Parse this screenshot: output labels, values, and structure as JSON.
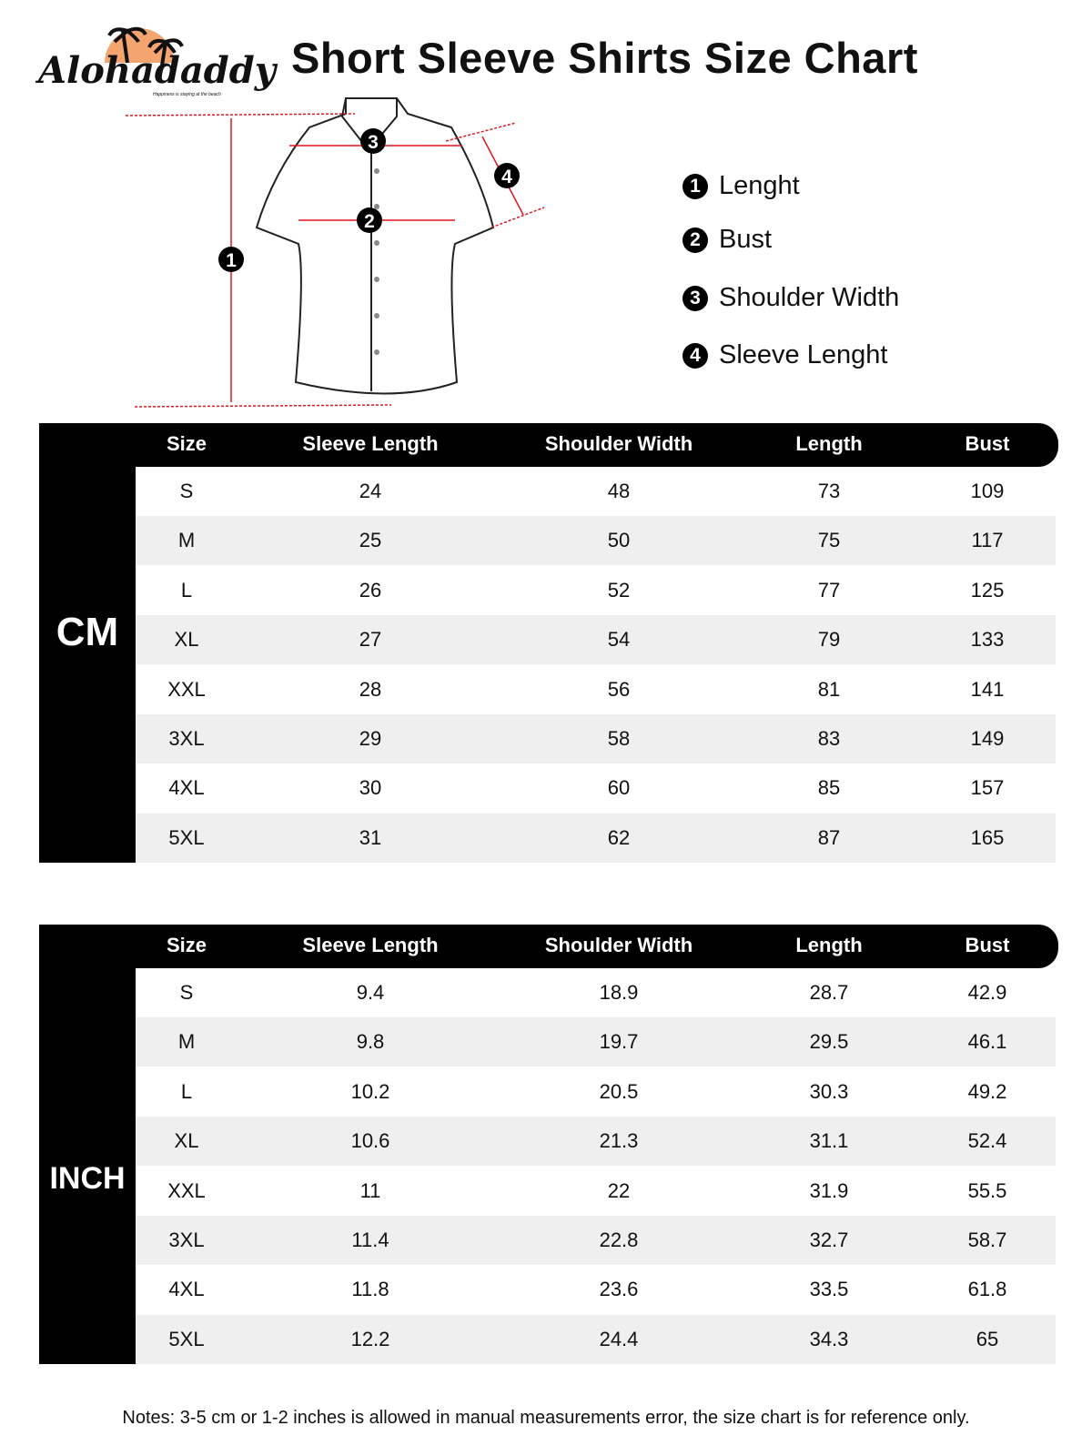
{
  "brand": {
    "name": "Alohadaddy",
    "tagline": "Happiness is staying at the beach",
    "accent": "#f4a46e"
  },
  "title": "Short Sleeve Shirts Size Chart",
  "diagram": {
    "markers": [
      "1",
      "2",
      "3",
      "4"
    ],
    "line_color": "#e0161e"
  },
  "legend": [
    {
      "num": "1",
      "label": "Lenght"
    },
    {
      "num": "2",
      "label": "Bust"
    },
    {
      "num": "3",
      "label": "Shoulder Width"
    },
    {
      "num": "4",
      "label": "Sleeve Lenght"
    }
  ],
  "columns": [
    "Size",
    "Sleeve Length",
    "Shoulder Width",
    "Length",
    "Bust"
  ],
  "tables": [
    {
      "unit": "CM",
      "rows": [
        [
          "S",
          "24",
          "48",
          "73",
          "109"
        ],
        [
          "M",
          "25",
          "50",
          "75",
          "117"
        ],
        [
          "L",
          "26",
          "52",
          "77",
          "125"
        ],
        [
          "XL",
          "27",
          "54",
          "79",
          "133"
        ],
        [
          "XXL",
          "28",
          "56",
          "81",
          "141"
        ],
        [
          "3XL",
          "29",
          "58",
          "83",
          "149"
        ],
        [
          "4XL",
          "30",
          "60",
          "85",
          "157"
        ],
        [
          "5XL",
          "31",
          "62",
          "87",
          "165"
        ]
      ]
    },
    {
      "unit": "INCH",
      "rows": [
        [
          "S",
          "9.4",
          "18.9",
          "28.7",
          "42.9"
        ],
        [
          "M",
          "9.8",
          "19.7",
          "29.5",
          "46.1"
        ],
        [
          "L",
          "10.2",
          "20.5",
          "30.3",
          "49.2"
        ],
        [
          "XL",
          "10.6",
          "21.3",
          "31.1",
          "52.4"
        ],
        [
          "XXL",
          "11",
          "22",
          "31.9",
          "55.5"
        ],
        [
          "3XL",
          "11.4",
          "22.8",
          "32.7",
          "58.7"
        ],
        [
          "4XL",
          "11.8",
          "23.6",
          "33.5",
          "61.8"
        ],
        [
          "5XL",
          "12.2",
          "24.4",
          "34.3",
          "65"
        ]
      ]
    }
  ],
  "notes": "Notes: 3-5 cm or 1-2 inches is allowed in manual measurements error, the size chart is for reference only."
}
